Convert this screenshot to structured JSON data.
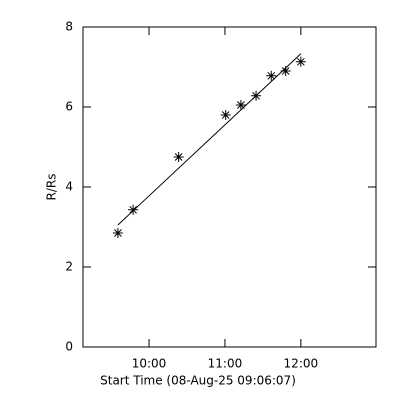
{
  "chart_data": {
    "type": "scatter",
    "x_label": "Start Time (08-Aug-25 09:06:07)",
    "y_label": "R/Rs",
    "series": [
      {
        "name": "R/Rs",
        "color": "#000000",
        "x": [
          9.59,
          9.79,
          10.39,
          11.01,
          11.21,
          11.41,
          11.61,
          11.8,
          12.0
        ],
        "values": [
          2.85,
          3.43,
          4.75,
          5.8,
          6.05,
          6.28,
          6.78,
          6.9,
          7.13
        ]
      }
    ],
    "fit": {
      "color": "#000000",
      "x": [
        9.59,
        12.0
      ],
      "values": [
        3.05,
        7.33
      ]
    },
    "xlim": [
      9.13,
      12.99
    ],
    "xticks": [
      {
        "value": 10,
        "label": "10:00"
      },
      {
        "value": 11,
        "label": "11:00"
      },
      {
        "value": 12,
        "label": "12:00"
      }
    ],
    "ylim": [
      0,
      8
    ],
    "yticks": [
      0,
      2,
      4,
      6,
      8
    ]
  }
}
